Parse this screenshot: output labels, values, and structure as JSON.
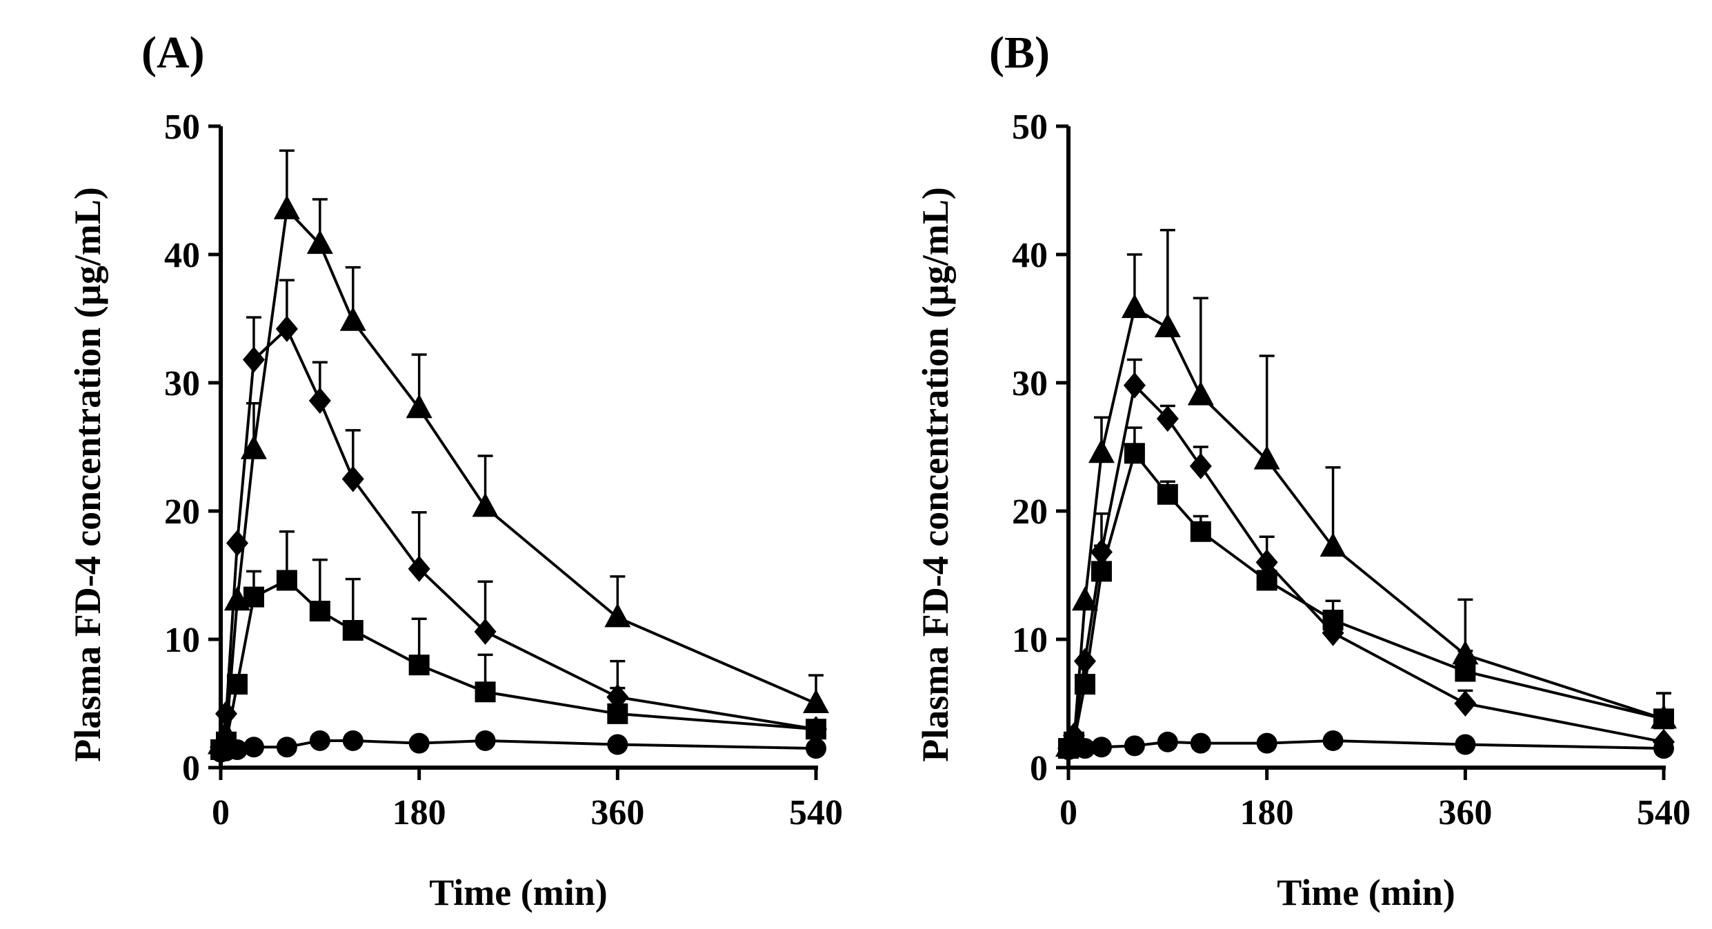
{
  "chart_data": [
    {
      "type": "line",
      "panel_label": "(A)",
      "xlabel": "Time (min)",
      "ylabel": "Plasma FD-4 concentration (µg/mL)",
      "xlim": [
        0,
        540
      ],
      "ylim": [
        0,
        50
      ],
      "xticks": [
        0,
        180,
        360,
        540
      ],
      "yticks": [
        0,
        10,
        20,
        30,
        40,
        50
      ],
      "xtick_labels": [
        "0",
        "180",
        "360",
        "540"
      ],
      "ytick_labels": [
        "0",
        "10",
        "20",
        "30",
        "40",
        "50"
      ],
      "grid": false,
      "legend": "none",
      "series": [
        {
          "name": "circle",
          "marker": "circle",
          "x": [
            0,
            5,
            15,
            30,
            60,
            90,
            120,
            180,
            240,
            360,
            540
          ],
          "values": [
            1.2,
            1.3,
            1.4,
            1.6,
            1.6,
            2.1,
            2.1,
            1.9,
            2.1,
            1.8,
            1.5
          ],
          "errors": [
            0,
            0,
            0,
            0,
            0,
            0,
            0,
            0,
            0,
            0,
            0
          ]
        },
        {
          "name": "square",
          "marker": "square",
          "x": [
            0,
            5,
            15,
            30,
            60,
            90,
            120,
            180,
            240,
            360,
            540
          ],
          "values": [
            1.4,
            2.0,
            6.5,
            13.3,
            14.6,
            12.2,
            10.7,
            8.0,
            5.9,
            4.2,
            3.0
          ],
          "errors": [
            0,
            0,
            0,
            2.0,
            3.8,
            4.0,
            4.0,
            3.6,
            2.9,
            2.0,
            0
          ]
        },
        {
          "name": "diamond",
          "marker": "diamond",
          "x": [
            0,
            5,
            15,
            30,
            60,
            90,
            120,
            180,
            240,
            360,
            540
          ],
          "values": [
            1.6,
            4.2,
            17.5,
            31.8,
            34.2,
            28.6,
            22.5,
            15.5,
            10.6,
            5.5,
            3.0
          ],
          "errors": [
            0,
            0,
            0,
            3.3,
            3.8,
            3.0,
            3.8,
            4.4,
            3.9,
            2.8,
            0
          ]
        },
        {
          "name": "triangle",
          "marker": "triangle",
          "x": [
            0,
            5,
            15,
            30,
            60,
            90,
            120,
            180,
            240,
            360,
            540
          ],
          "values": [
            1.8,
            2.5,
            13.0,
            24.8,
            43.5,
            40.8,
            34.8,
            28.0,
            20.3,
            11.7,
            5.0
          ],
          "errors": [
            0,
            0,
            0,
            3.6,
            4.6,
            3.5,
            4.2,
            4.2,
            4.0,
            3.2,
            2.2
          ]
        }
      ]
    },
    {
      "type": "line",
      "panel_label": "(B)",
      "xlabel": "Time (min)",
      "ylabel": "Plasma FD-4 concentration (µg/mL)",
      "xlim": [
        0,
        540
      ],
      "ylim": [
        0,
        50
      ],
      "xticks": [
        0,
        180,
        360,
        540
      ],
      "yticks": [
        0,
        10,
        20,
        30,
        40,
        50
      ],
      "xtick_labels": [
        "0",
        "180",
        "360",
        "540"
      ],
      "ytick_labels": [
        "0",
        "10",
        "20",
        "30",
        "40",
        "50"
      ],
      "grid": false,
      "legend": "none",
      "series": [
        {
          "name": "circle",
          "marker": "circle",
          "x": [
            0,
            5,
            15,
            30,
            60,
            90,
            120,
            180,
            240,
            360,
            540
          ],
          "values": [
            1.4,
            1.5,
            1.5,
            1.6,
            1.7,
            2.0,
            1.9,
            1.9,
            2.1,
            1.8,
            1.5
          ],
          "errors": [
            0,
            0,
            0,
            0,
            0,
            0,
            0,
            0,
            0,
            0,
            0
          ]
        },
        {
          "name": "square",
          "marker": "square",
          "x": [
            0,
            5,
            15,
            30,
            60,
            90,
            120,
            180,
            240,
            360,
            540
          ],
          "values": [
            1.5,
            2.0,
            6.5,
            15.3,
            24.5,
            21.3,
            18.4,
            14.6,
            11.5,
            7.5,
            3.8
          ],
          "errors": [
            0,
            0,
            0,
            2.0,
            2.0,
            1.0,
            1.2,
            1.6,
            1.5,
            1.6,
            2.0
          ]
        },
        {
          "name": "diamond",
          "marker": "diamond",
          "x": [
            0,
            5,
            15,
            30,
            60,
            90,
            120,
            180,
            240,
            360,
            540
          ],
          "values": [
            1.5,
            2.5,
            8.3,
            16.8,
            29.8,
            27.2,
            23.5,
            16.0,
            10.5,
            5.0,
            2.0
          ],
          "errors": [
            0,
            0,
            0,
            3.0,
            2.0,
            1.0,
            1.5,
            2.0,
            1.5,
            1.0,
            0
          ]
        },
        {
          "name": "triangle",
          "marker": "triangle",
          "x": [
            0,
            5,
            15,
            30,
            60,
            90,
            120,
            180,
            240,
            360,
            540
          ],
          "values": [
            1.6,
            2.0,
            13.0,
            24.5,
            35.8,
            34.3,
            29.0,
            24.0,
            17.2,
            8.8,
            3.8
          ],
          "errors": [
            0,
            0,
            0,
            2.8,
            4.2,
            7.6,
            7.6,
            8.1,
            6.2,
            4.3,
            2.0
          ]
        }
      ]
    }
  ]
}
